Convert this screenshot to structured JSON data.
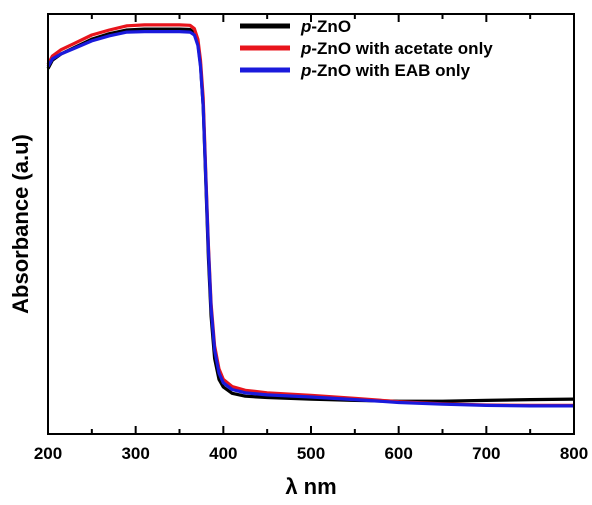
{
  "chart_data": {
    "type": "line",
    "title": "",
    "xlabel": "λ nm",
    "ylabel": "Absorbance (a.u)",
    "xlim": [
      200,
      800
    ],
    "ylim": [
      0,
      1.0
    ],
    "x_ticks": [
      "200",
      "300",
      "400",
      "500",
      "600",
      "700",
      "800"
    ],
    "grid": false,
    "legend_position": "top-right",
    "series": [
      {
        "name": "p-ZnO",
        "name_italic": "p",
        "name_rest": "-ZnO",
        "color": "#000000",
        "points": [
          [
            200,
            0.87
          ],
          [
            205,
            0.89
          ],
          [
            215,
            0.905
          ],
          [
            230,
            0.92
          ],
          [
            250,
            0.94
          ],
          [
            270,
            0.953
          ],
          [
            290,
            0.962
          ],
          [
            310,
            0.964
          ],
          [
            330,
            0.964
          ],
          [
            350,
            0.964
          ],
          [
            362,
            0.963
          ],
          [
            367,
            0.955
          ],
          [
            371,
            0.93
          ],
          [
            374,
            0.88
          ],
          [
            377,
            0.78
          ],
          [
            380,
            0.6
          ],
          [
            383,
            0.42
          ],
          [
            386,
            0.28
          ],
          [
            390,
            0.18
          ],
          [
            395,
            0.13
          ],
          [
            400,
            0.112
          ],
          [
            410,
            0.097
          ],
          [
            425,
            0.09
          ],
          [
            450,
            0.087
          ],
          [
            500,
            0.083
          ],
          [
            550,
            0.08
          ],
          [
            600,
            0.078
          ],
          [
            650,
            0.078
          ],
          [
            700,
            0.08
          ],
          [
            750,
            0.082
          ],
          [
            800,
            0.083
          ]
        ]
      },
      {
        "name": "p-ZnO with acetate only",
        "name_italic": "p",
        "name_rest": "-ZnO with acetate only",
        "color": "#e8141c",
        "points": [
          [
            200,
            0.88
          ],
          [
            205,
            0.9
          ],
          [
            215,
            0.915
          ],
          [
            230,
            0.93
          ],
          [
            250,
            0.95
          ],
          [
            270,
            0.962
          ],
          [
            290,
            0.972
          ],
          [
            310,
            0.974
          ],
          [
            330,
            0.974
          ],
          [
            350,
            0.974
          ],
          [
            362,
            0.973
          ],
          [
            367,
            0.965
          ],
          [
            371,
            0.94
          ],
          [
            374,
            0.89
          ],
          [
            377,
            0.8
          ],
          [
            380,
            0.62
          ],
          [
            383,
            0.45
          ],
          [
            386,
            0.31
          ],
          [
            390,
            0.21
          ],
          [
            395,
            0.155
          ],
          [
            400,
            0.13
          ],
          [
            410,
            0.113
          ],
          [
            425,
            0.104
          ],
          [
            450,
            0.098
          ],
          [
            500,
            0.092
          ],
          [
            550,
            0.085
          ],
          [
            600,
            0.077
          ],
          [
            650,
            0.072
          ],
          [
            700,
            0.069
          ],
          [
            750,
            0.068
          ],
          [
            800,
            0.068
          ]
        ]
      },
      {
        "name": "p-ZnO with EAB only",
        "name_italic": "p",
        "name_rest": "-ZnO with EAB only",
        "color": "#1a1adc",
        "points": [
          [
            200,
            0.875
          ],
          [
            205,
            0.893
          ],
          [
            215,
            0.905
          ],
          [
            230,
            0.918
          ],
          [
            250,
            0.936
          ],
          [
            270,
            0.948
          ],
          [
            290,
            0.957
          ],
          [
            310,
            0.958
          ],
          [
            330,
            0.958
          ],
          [
            350,
            0.958
          ],
          [
            362,
            0.957
          ],
          [
            367,
            0.95
          ],
          [
            371,
            0.925
          ],
          [
            374,
            0.875
          ],
          [
            377,
            0.78
          ],
          [
            380,
            0.61
          ],
          [
            383,
            0.44
          ],
          [
            386,
            0.3
          ],
          [
            390,
            0.2
          ],
          [
            395,
            0.145
          ],
          [
            400,
            0.122
          ],
          [
            410,
            0.106
          ],
          [
            425,
            0.098
          ],
          [
            450,
            0.093
          ],
          [
            500,
            0.088
          ],
          [
            550,
            0.082
          ],
          [
            600,
            0.075
          ],
          [
            650,
            0.071
          ],
          [
            700,
            0.068
          ],
          [
            750,
            0.067
          ],
          [
            800,
            0.067
          ]
        ]
      }
    ]
  }
}
